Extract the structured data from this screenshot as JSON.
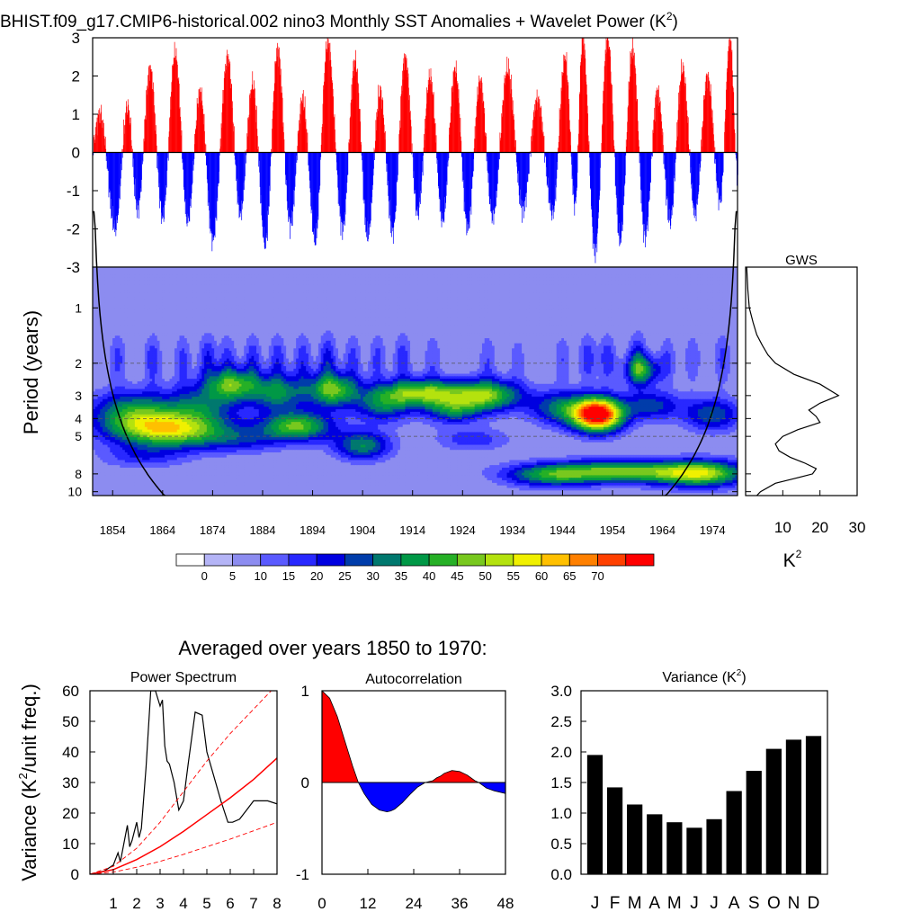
{
  "title": {
    "text": "BHIST.f09_g17.CMIP6-historical.002 nino3 Monthly SST Anomalies + Wavelet Power (K",
    "sup": "2",
    "close": ")"
  },
  "colors": {
    "positive": "#ff0000",
    "negative": "#0000ff",
    "cone": "#000000",
    "gray_dash": "#555555"
  },
  "chart_data": [
    {
      "id": "sst_anomalies",
      "type": "bar",
      "title": "nino3 Monthly SST Anomalies",
      "x_range": [
        1850,
        1979
      ],
      "ylim": [
        -3,
        3
      ],
      "yticks": [
        "3",
        "2",
        "1",
        "0",
        "-1",
        "-2",
        "-3"
      ],
      "ytick_values": [
        3,
        2,
        1,
        0,
        -1,
        -2,
        -3
      ],
      "event_peaks": [
        {
          "x": 1851.5,
          "v": 1.0
        },
        {
          "x": 1854.5,
          "v": -2.0
        },
        {
          "x": 1857.0,
          "v": 1.2
        },
        {
          "x": 1859.0,
          "v": -1.5
        },
        {
          "x": 1861.5,
          "v": 2.2
        },
        {
          "x": 1864.0,
          "v": -1.7
        },
        {
          "x": 1866.5,
          "v": 2.6
        },
        {
          "x": 1869.0,
          "v": -1.8
        },
        {
          "x": 1871.5,
          "v": 1.6
        },
        {
          "x": 1874.0,
          "v": -2.3
        },
        {
          "x": 1877.0,
          "v": 2.5
        },
        {
          "x": 1879.5,
          "v": -1.6
        },
        {
          "x": 1882.0,
          "v": 1.8
        },
        {
          "x": 1884.5,
          "v": -2.4
        },
        {
          "x": 1887.0,
          "v": 2.7
        },
        {
          "x": 1889.5,
          "v": -1.9
        },
        {
          "x": 1892.0,
          "v": 1.4
        },
        {
          "x": 1894.5,
          "v": -2.3
        },
        {
          "x": 1897.0,
          "v": 2.9
        },
        {
          "x": 1900.0,
          "v": -2.0
        },
        {
          "x": 1902.5,
          "v": 2.4
        },
        {
          "x": 1905.0,
          "v": -2.2
        },
        {
          "x": 1907.5,
          "v": 1.6
        },
        {
          "x": 1910.0,
          "v": -2.1
        },
        {
          "x": 1912.5,
          "v": 2.5
        },
        {
          "x": 1915.0,
          "v": -1.6
        },
        {
          "x": 1917.5,
          "v": 2.0
        },
        {
          "x": 1920.0,
          "v": -1.8
        },
        {
          "x": 1922.5,
          "v": 2.2
        },
        {
          "x": 1925.0,
          "v": -2.0
        },
        {
          "x": 1927.5,
          "v": 1.9
        },
        {
          "x": 1930.0,
          "v": -1.7
        },
        {
          "x": 1933.0,
          "v": 2.2
        },
        {
          "x": 1936.0,
          "v": -1.5
        },
        {
          "x": 1939.0,
          "v": 1.4
        },
        {
          "x": 1942.0,
          "v": -1.6
        },
        {
          "x": 1944.5,
          "v": 2.5
        },
        {
          "x": 1946.5,
          "v": -1.4
        },
        {
          "x": 1948.0,
          "v": 3.0
        },
        {
          "x": 1950.5,
          "v": -2.6
        },
        {
          "x": 1953.0,
          "v": 3.0
        },
        {
          "x": 1955.5,
          "v": -2.3
        },
        {
          "x": 1958.0,
          "v": 2.7
        },
        {
          "x": 1960.5,
          "v": -2.2
        },
        {
          "x": 1963.0,
          "v": 1.6
        },
        {
          "x": 1965.5,
          "v": -1.8
        },
        {
          "x": 1968.0,
          "v": 2.2
        },
        {
          "x": 1970.5,
          "v": -1.6
        },
        {
          "x": 1973.0,
          "v": 2.0
        },
        {
          "x": 1975.5,
          "v": -1.3
        },
        {
          "x": 1977.5,
          "v": 3.0
        },
        {
          "x": 1979.0,
          "v": -0.6
        }
      ]
    },
    {
      "id": "wavelet_power",
      "type": "heatmap",
      "ylabel": "Period (years)",
      "x_range": [
        1850,
        1979
      ],
      "xticks": [
        "1854",
        "1864",
        "1874",
        "1884",
        "1894",
        "1904",
        "1914",
        "1924",
        "1934",
        "1944",
        "1954",
        "1964",
        "1974"
      ],
      "xtick_values": [
        1854,
        1864,
        1874,
        1884,
        1894,
        1904,
        1914,
        1924,
        1934,
        1944,
        1954,
        1964,
        1974
      ],
      "yticks": [
        "1",
        "2",
        "3",
        "4",
        "5",
        "8",
        "10"
      ],
      "ytick_values": [
        1,
        2,
        3,
        4,
        5,
        8,
        10
      ],
      "period_range": [
        0.6,
        10.5
      ],
      "dashed_periods": [
        2,
        4,
        5
      ],
      "colorbar": {
        "labels": [
          "0",
          "5",
          "10",
          "15",
          "20",
          "25",
          "30",
          "35",
          "40",
          "45",
          "50",
          "55",
          "60",
          "65",
          "70"
        ],
        "colors": [
          "#ffffff",
          "#b4b4f6",
          "#8c8cf0",
          "#5a5aff",
          "#2828ff",
          "#0000e0",
          "#003caa",
          "#00786e",
          "#009846",
          "#26b026",
          "#78c81e",
          "#b4e20e",
          "#f0f000",
          "#ffc000",
          "#ff8000",
          "#ff4000",
          "#ff0000"
        ]
      },
      "blobs": [
        {
          "t": 1865,
          "p": 4.6,
          "st": 8,
          "sp": 0.16,
          "a": 50
        },
        {
          "t": 1858,
          "p": 3.6,
          "st": 6,
          "sp": 0.18,
          "a": 28
        },
        {
          "t": 1872,
          "p": 3.3,
          "st": 5,
          "sp": 0.18,
          "a": 22
        },
        {
          "t": 1878,
          "p": 2.6,
          "st": 3.5,
          "sp": 0.14,
          "a": 35
        },
        {
          "t": 1887,
          "p": 2.9,
          "st": 4,
          "sp": 0.16,
          "a": 30
        },
        {
          "t": 1891,
          "p": 4.4,
          "st": 5,
          "sp": 0.13,
          "a": 40
        },
        {
          "t": 1898,
          "p": 2.8,
          "st": 3.5,
          "sp": 0.15,
          "a": 40
        },
        {
          "t": 1904,
          "p": 5.6,
          "st": 4,
          "sp": 0.13,
          "a": 30
        },
        {
          "t": 1908,
          "p": 3.4,
          "st": 4,
          "sp": 0.15,
          "a": 25
        },
        {
          "t": 1916,
          "p": 2.9,
          "st": 6,
          "sp": 0.12,
          "a": 42
        },
        {
          "t": 1929,
          "p": 3.0,
          "st": 5,
          "sp": 0.14,
          "a": 40
        },
        {
          "t": 1922,
          "p": 3.6,
          "st": 4,
          "sp": 0.12,
          "a": 25
        },
        {
          "t": 1943,
          "p": 3.5,
          "st": 4,
          "sp": 0.15,
          "a": 25
        },
        {
          "t": 1951,
          "p": 3.8,
          "st": 3.6,
          "sp": 0.15,
          "a": 82
        },
        {
          "t": 1960,
          "p": 2.2,
          "st": 2.5,
          "sp": 0.13,
          "a": 30
        },
        {
          "t": 1962,
          "p": 3.4,
          "st": 4,
          "sp": 0.13,
          "a": 22
        },
        {
          "t": 1955,
          "p": 7.8,
          "st": 12,
          "sp": 0.1,
          "a": 42
        },
        {
          "t": 1941,
          "p": 8.3,
          "st": 6,
          "sp": 0.1,
          "a": 20
        },
        {
          "t": 1972,
          "p": 8.0,
          "st": 6,
          "sp": 0.12,
          "a": 38
        },
        {
          "t": 1974,
          "p": 3.8,
          "st": 4,
          "sp": 0.15,
          "a": 25
        },
        {
          "t": 1926,
          "p": 5.2,
          "st": 5,
          "sp": 0.1,
          "a": 14
        },
        {
          "t": 1880,
          "p": 5.2,
          "st": 6,
          "sp": 0.12,
          "a": 15
        },
        {
          "t": 1860,
          "p": 6.5,
          "st": 6,
          "sp": 0.1,
          "a": 12
        }
      ],
      "spikes": [
        {
          "t": 1855,
          "a": 12
        },
        {
          "t": 1862,
          "a": 14
        },
        {
          "t": 1868,
          "a": 12
        },
        {
          "t": 1873,
          "a": 16
        },
        {
          "t": 1877,
          "a": 12
        },
        {
          "t": 1882,
          "a": 14
        },
        {
          "t": 1887,
          "a": 14
        },
        {
          "t": 1892,
          "a": 14
        },
        {
          "t": 1897,
          "a": 18
        },
        {
          "t": 1902,
          "a": 12
        },
        {
          "t": 1907,
          "a": 12
        },
        {
          "t": 1912,
          "a": 14
        },
        {
          "t": 1918,
          "a": 10
        },
        {
          "t": 1929,
          "a": 10
        },
        {
          "t": 1935,
          "a": 8
        },
        {
          "t": 1944,
          "a": 10
        },
        {
          "t": 1949,
          "a": 14
        },
        {
          "t": 1953,
          "a": 14
        },
        {
          "t": 1959,
          "a": 18
        },
        {
          "t": 1965,
          "a": 10
        },
        {
          "t": 1970,
          "a": 10
        },
        {
          "t": 1976,
          "a": 12
        }
      ]
    },
    {
      "id": "global_wavelet_spectrum",
      "type": "line",
      "title": "GWS",
      "xlabel": "K",
      "xlabel_sup": "2",
      "xlim": [
        0,
        30
      ],
      "xticks": [
        "10",
        "20",
        "30"
      ],
      "xtick_values": [
        10,
        20,
        30
      ],
      "period": [
        0.6,
        0.8,
        1.0,
        1.2,
        1.4,
        1.6,
        1.8,
        2.0,
        2.3,
        2.6,
        3.0,
        3.3,
        3.6,
        3.9,
        4.2,
        4.6,
        5.0,
        5.5,
        6.0,
        6.5,
        7.0,
        7.5,
        8.0,
        8.5,
        9.0,
        10.0,
        10.5
      ],
      "power": [
        0.3,
        0.6,
        1.0,
        2.0,
        3.0,
        4.5,
        6.0,
        8.0,
        13.0,
        20.0,
        25.0,
        20.0,
        17.0,
        19.0,
        20.0,
        14.0,
        10.0,
        8.0,
        9.0,
        12.0,
        16.0,
        19.0,
        18.0,
        13.0,
        8.0,
        4.0,
        3.0
      ]
    },
    {
      "id": "averaged_title",
      "type": "table",
      "title": "Averaged over years 1850 to 1970:"
    },
    {
      "id": "power_spectrum",
      "type": "line",
      "title": "Power Spectrum",
      "ylabel": "Variance (K",
      "ylabel_sup": "2",
      "ylabel_close": "/unit freq.)",
      "xlim": [
        0,
        8
      ],
      "ylim": [
        0,
        60
      ],
      "xticks": [
        "1",
        "2",
        "3",
        "4",
        "5",
        "6",
        "7",
        "8"
      ],
      "xtick_values": [
        1,
        2,
        3,
        4,
        5,
        6,
        7,
        8
      ],
      "yticks": [
        "60",
        "50",
        "40",
        "30",
        "20",
        "10",
        "0"
      ],
      "ytick_values": [
        60,
        50,
        40,
        30,
        20,
        10,
        0
      ],
      "series": [
        {
          "name": "spectrum",
          "x": [
            0.1,
            0.6,
            1.0,
            1.2,
            1.3,
            1.5,
            1.6,
            1.7,
            1.8,
            2.0,
            2.1,
            2.2,
            2.4,
            2.6,
            2.8,
            3.0,
            3.1,
            3.2,
            3.3,
            3.4,
            3.6,
            3.8,
            4.0,
            4.2,
            4.5,
            4.8,
            5.0,
            5.3,
            5.6,
            5.9,
            6.1,
            6.4,
            6.7,
            7.0,
            7.3,
            7.6,
            8.0
          ],
          "y": [
            0.2,
            1.0,
            3.0,
            7.0,
            4.0,
            12.0,
            16.0,
            9.0,
            11.0,
            17.0,
            12.0,
            15.0,
            35.0,
            60.0,
            60.0,
            55.0,
            57.0,
            42.0,
            37.0,
            36.0,
            30.0,
            21.0,
            24.0,
            36.0,
            53.0,
            52.0,
            40.0,
            32.0,
            24.0,
            17.0,
            17.0,
            18.0,
            21.0,
            24.0,
            24.0,
            24.0,
            23.0
          ]
        },
        {
          "name": "red-noise",
          "style": "solid",
          "x": [
            0,
            1,
            2,
            3,
            4,
            5,
            6,
            7,
            8
          ],
          "y": [
            0,
            1.5,
            4.8,
            9.0,
            14.0,
            19.5,
            25.0,
            31.0,
            38.0
          ]
        },
        {
          "name": "red-noise-upper",
          "style": "dashed",
          "x": [
            0,
            1,
            2,
            3,
            4,
            5,
            6,
            7,
            8
          ],
          "y": [
            0,
            2.6,
            8.5,
            17.0,
            27.0,
            37.0,
            46.0,
            54.0,
            62.0
          ]
        },
        {
          "name": "red-noise-lower",
          "style": "dashed",
          "x": [
            0,
            1,
            2,
            3,
            4,
            5,
            6,
            7,
            8
          ],
          "y": [
            0,
            0.7,
            2.3,
            4.2,
            6.5,
            9.0,
            11.5,
            14.2,
            17.0
          ]
        }
      ]
    },
    {
      "id": "autocorrelation",
      "type": "area",
      "title": "Autocorrelation",
      "xlim": [
        0,
        48
      ],
      "ylim": [
        -1,
        1
      ],
      "xticks": [
        "0",
        "12",
        "24",
        "36",
        "48"
      ],
      "xtick_values": [
        0,
        12,
        24,
        36,
        48
      ],
      "yticks": [
        "1",
        "0",
        "-1"
      ],
      "ytick_values": [
        1,
        0,
        -1
      ],
      "lag": [
        0,
        2,
        4,
        6,
        8,
        9.5,
        11,
        13,
        15,
        17,
        18,
        19,
        21,
        23,
        25,
        27,
        29,
        30,
        31,
        32,
        34,
        36,
        38,
        40,
        41,
        42,
        43,
        45,
        47,
        48
      ],
      "r": [
        1.0,
        0.92,
        0.72,
        0.45,
        0.18,
        0.0,
        -0.12,
        -0.24,
        -0.3,
        -0.32,
        -0.31,
        -0.29,
        -0.22,
        -0.13,
        -0.05,
        0.0,
        0.02,
        0.05,
        0.07,
        0.1,
        0.13,
        0.12,
        0.08,
        0.02,
        0.0,
        -0.03,
        -0.06,
        -0.09,
        -0.11,
        -0.12
      ]
    },
    {
      "id": "monthly_variance",
      "type": "bar",
      "title": "Variance (K",
      "title_sup": "2",
      "title_close": ")",
      "categories": [
        "J",
        "F",
        "M",
        "A",
        "M",
        "J",
        "J",
        "A",
        "S",
        "O",
        "N",
        "D"
      ],
      "values": [
        1.95,
        1.42,
        1.14,
        0.98,
        0.85,
        0.76,
        0.9,
        1.36,
        1.69,
        2.05,
        2.2,
        2.26
      ],
      "ylim": [
        0,
        3
      ],
      "yticks": [
        "3.0",
        "2.5",
        "2.0",
        "1.5",
        "1.0",
        "0.5",
        "0.0"
      ],
      "ytick_values": [
        3.0,
        2.5,
        2.0,
        1.5,
        1.0,
        0.5,
        0.0
      ]
    }
  ]
}
